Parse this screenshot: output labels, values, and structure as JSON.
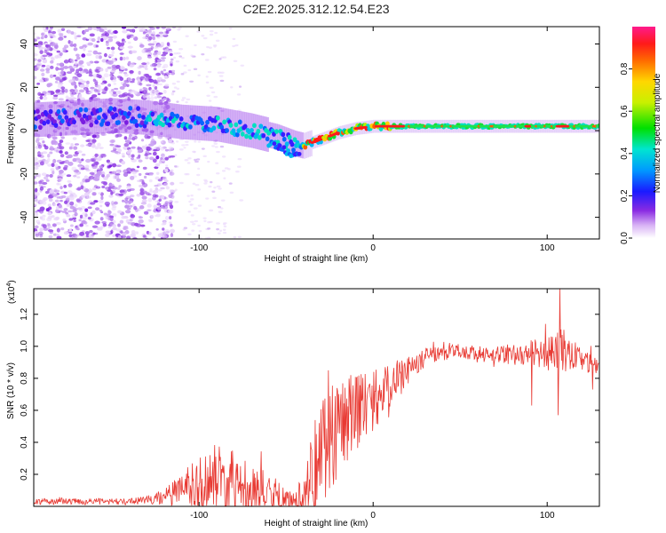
{
  "figure": {
    "title": "C2E2.2025.312.12.54.E23"
  },
  "chart_data": [
    {
      "type": "heatmap",
      "xlabel": "Height of straight line (km)",
      "ylabel": "Frequency (Hz)",
      "xlim": [
        -195,
        130
      ],
      "ylim": [
        -50,
        48
      ],
      "xticks": [
        -100,
        0,
        100
      ],
      "yticks": [
        -40,
        -20,
        0,
        20,
        40
      ],
      "colorbar": {
        "label": "Normalized spectral amplitude",
        "range": [
          0,
          1
        ],
        "ticks": [
          0.0,
          0.2,
          0.4,
          0.6,
          0.8
        ],
        "tick_labels": [
          "0.0",
          "0.2",
          "0.4",
          "0.6",
          "0.8"
        ]
      },
      "ridge": [
        [
          -195,
          5
        ],
        [
          -170,
          6
        ],
        [
          -150,
          7
        ],
        [
          -130,
          6
        ],
        [
          -110,
          4
        ],
        [
          -90,
          3
        ],
        [
          -70,
          0
        ],
        [
          -55,
          -3
        ],
        [
          -45,
          -6
        ],
        [
          -40,
          -7
        ],
        [
          -30,
          -4
        ],
        [
          -20,
          -1
        ],
        [
          -10,
          1
        ],
        [
          0,
          2
        ],
        [
          20,
          2
        ],
        [
          60,
          2
        ],
        [
          100,
          2
        ],
        [
          130,
          2
        ]
      ]
    },
    {
      "type": "line",
      "xlabel": "Height of straight line (km)",
      "ylabel": "SNR (10 * v/v)",
      "multiplier": "(x10",
      "multiplier_exp": "4",
      "multiplier_close": ")",
      "xlim": [
        -195,
        130
      ],
      "ylim": [
        0,
        13600
      ],
      "xticks": [
        -100,
        0,
        100
      ],
      "yticks": [
        2000,
        4000,
        6000,
        8000,
        10000,
        12000
      ],
      "ytick_labels": [
        "0.2",
        "0.4",
        "0.6",
        "0.8",
        "1.0",
        "1.2"
      ],
      "color": "#e83a33",
      "envelope": {
        "x": [
          -195,
          -150,
          -140,
          -130,
          -120,
          -110,
          -100,
          -95,
          -90,
          -85,
          -80,
          -75,
          -70,
          -65,
          -60,
          -55,
          -50,
          -45,
          -40,
          -35,
          -32,
          -30,
          -27,
          -25,
          -22,
          -20,
          -17,
          -15,
          -12,
          -10,
          -8,
          -5,
          0,
          5,
          10,
          15,
          20,
          25,
          30,
          35,
          40,
          45,
          50,
          55,
          60,
          65,
          70,
          75,
          80,
          85,
          90,
          95,
          100,
          105,
          108,
          110,
          115,
          120,
          125,
          130
        ],
        "base": [
          300,
          300,
          300,
          400,
          600,
          1000,
          1400,
          1600,
          1800,
          1700,
          1600,
          1500,
          1200,
          900,
          700,
          500,
          300,
          200,
          700,
          2000,
          3000,
          3500,
          4200,
          4500,
          4800,
          5000,
          5400,
          5600,
          5800,
          6000,
          6200,
          6400,
          6600,
          7000,
          7500,
          8000,
          8500,
          8900,
          9300,
          9500,
          9600,
          9700,
          9700,
          9600,
          9500,
          9400,
          9400,
          9400,
          9500,
          9500,
          9600,
          9600,
          9500,
          9600,
          9700,
          9700,
          9500,
          9200,
          8900,
          9000
        ],
        "noise": [
          200,
          200,
          200,
          250,
          500,
          1200,
          1800,
          2000,
          2200,
          2100,
          2200,
          2000,
          1700,
          1500,
          1300,
          1100,
          800,
          600,
          1500,
          3000,
          3400,
          3500,
          3600,
          3500,
          3500,
          3400,
          3200,
          3000,
          2800,
          2600,
          2500,
          2300,
          2000,
          1600,
          1400,
          1200,
          900,
          700,
          600,
          500,
          500,
          450,
          450,
          500,
          550,
          600,
          600,
          650,
          650,
          700,
          800,
          900,
          1000,
          1200,
          1500,
          1300,
          900,
          800,
          700,
          700
        ]
      },
      "spikes": [
        {
          "x": 107,
          "y": 13600
        },
        {
          "x": 106,
          "y": 5700
        },
        {
          "x": 91,
          "y": 6300
        },
        {
          "x": 99,
          "y": 11400
        },
        {
          "x": 126,
          "y": 7300
        },
        {
          "x": -26,
          "y": 8500
        },
        {
          "x": -13,
          "y": 8200
        }
      ]
    }
  ]
}
